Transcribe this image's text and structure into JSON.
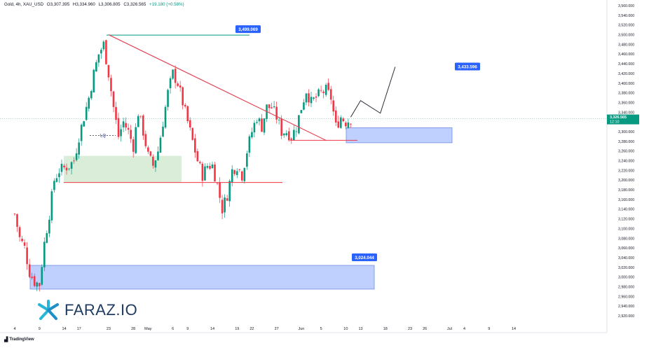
{
  "header": {
    "symbol": "Gold, 4h, XAU_USD",
    "open": "O3,307.395",
    "high": "H3,334.960",
    "low": "L3,306.805",
    "close": "C3,326.565",
    "change": "+19.180 (+0.58%)"
  },
  "watermark": {
    "brand": "FARAZ.IO",
    "logo_icon": "faraz-star-logo"
  },
  "footer": {
    "provider": "TradingView",
    "provider_icon": "tradingview-logo-icon"
  },
  "colors": {
    "up": "#089981",
    "down": "#f23645",
    "trendline": "#e04656",
    "support": "#f23645",
    "resistance_top": "#089981",
    "zone_blue": "#a9c0ff",
    "zone_green": "#cfe8cf",
    "label_bg": "#2962ff"
  },
  "chart_data": {
    "type": "candlestick",
    "instrument": "XAU_USD",
    "timeframe": "4h",
    "ylim": [
      2900,
      3570
    ],
    "y_ticks": [
      2920,
      2940,
      2960,
      2980,
      3000,
      3020,
      3040,
      3060,
      3080,
      3100,
      3120,
      3140,
      3160,
      3180,
      3200,
      3220,
      3240,
      3260,
      3280,
      3300,
      3320,
      3340,
      3360,
      3380,
      3400,
      3420,
      3440,
      3460,
      3480,
      3500,
      3520,
      3540,
      3560
    ],
    "y_tick_labels": [
      "2,920.000",
      "2,940.000",
      "2,960.000",
      "2,980.000",
      "3,000.000",
      "3,020.000",
      "3,040.000",
      "3,060.000",
      "3,080.000",
      "3,100.000",
      "3,120.000",
      "3,140.000",
      "3,160.000",
      "3,180.000",
      "3,200.000",
      "3,220.000",
      "3,240.000",
      "3,260.000",
      "3,280.000",
      "3,300.000",
      "3,320.000",
      "3,340.000",
      "3,360.000",
      "3,380.000",
      "3,400.000",
      "3,420.000",
      "3,440.000",
      "3,460.000",
      "3,480.000",
      "3,500.000",
      "3,520.000",
      "3,540.000",
      "3,560.000"
    ],
    "x_ticks": [
      {
        "label": "4",
        "day": 0
      },
      {
        "label": "9",
        "day": 5
      },
      {
        "label": "14",
        "day": 10
      },
      {
        "label": "17",
        "day": 13
      },
      {
        "label": "23",
        "day": 19
      },
      {
        "label": "28",
        "day": 24
      },
      {
        "label": "May",
        "day": 27
      },
      {
        "label": "6",
        "day": 32
      },
      {
        "label": "9",
        "day": 35
      },
      {
        "label": "14",
        "day": 40
      },
      {
        "label": "19",
        "day": 45
      },
      {
        "label": "22",
        "day": 48
      },
      {
        "label": "27",
        "day": 53
      },
      {
        "label": "Jun",
        "day": 58
      },
      {
        "label": "5",
        "day": 62
      },
      {
        "label": "10",
        "day": 67
      },
      {
        "label": "13",
        "day": 70
      },
      {
        "label": "18",
        "day": 75
      },
      {
        "label": "23",
        "day": 80
      },
      {
        "label": "26",
        "day": 83
      },
      {
        "label": "Jul",
        "day": 88
      },
      {
        "label": "4",
        "day": 91
      },
      {
        "label": "9",
        "day": 96
      },
      {
        "label": "14",
        "day": 101
      }
    ],
    "price_path": [
      {
        "day": 0,
        "price": 3130
      },
      {
        "day": 1,
        "price": 3080
      },
      {
        "day": 2,
        "price": 3060
      },
      {
        "day": 3,
        "price": 3010
      },
      {
        "day": 4,
        "price": 2990
      },
      {
        "day": 5,
        "price": 2985
      },
      {
        "day": 6,
        "price": 3070
      },
      {
        "day": 7,
        "price": 3130
      },
      {
        "day": 8,
        "price": 3200
      },
      {
        "day": 9,
        "price": 3220
      },
      {
        "day": 10,
        "price": 3225
      },
      {
        "day": 11,
        "price": 3230
      },
      {
        "day": 12,
        "price": 3240
      },
      {
        "day": 13,
        "price": 3290
      },
      {
        "day": 14,
        "price": 3330
      },
      {
        "day": 15,
        "price": 3370
      },
      {
        "day": 16,
        "price": 3420
      },
      {
        "day": 17,
        "price": 3460
      },
      {
        "day": 18,
        "price": 3480
      },
      {
        "day": 19,
        "price": 3420
      },
      {
        "day": 20,
        "price": 3350
      },
      {
        "day": 21,
        "price": 3290
      },
      {
        "day": 22,
        "price": 3320
      },
      {
        "day": 23,
        "price": 3300
      },
      {
        "day": 24,
        "price": 3270
      },
      {
        "day": 25,
        "price": 3340
      },
      {
        "day": 26,
        "price": 3300
      },
      {
        "day": 27,
        "price": 3250
      },
      {
        "day": 28,
        "price": 3230
      },
      {
        "day": 29,
        "price": 3260
      },
      {
        "day": 30,
        "price": 3320
      },
      {
        "day": 31,
        "price": 3380
      },
      {
        "day": 32,
        "price": 3420
      },
      {
        "day": 33,
        "price": 3400
      },
      {
        "day": 34,
        "price": 3360
      },
      {
        "day": 35,
        "price": 3320
      },
      {
        "day": 36,
        "price": 3280
      },
      {
        "day": 37,
        "price": 3240
      },
      {
        "day": 38,
        "price": 3210
      },
      {
        "day": 39,
        "price": 3230
      },
      {
        "day": 40,
        "price": 3230
      },
      {
        "day": 41,
        "price": 3190
      },
      {
        "day": 42,
        "price": 3140
      },
      {
        "day": 43,
        "price": 3170
      },
      {
        "day": 44,
        "price": 3220
      },
      {
        "day": 45,
        "price": 3230
      },
      {
        "day": 46,
        "price": 3210
      },
      {
        "day": 47,
        "price": 3260
      },
      {
        "day": 48,
        "price": 3300
      },
      {
        "day": 49,
        "price": 3330
      },
      {
        "day": 50,
        "price": 3310
      },
      {
        "day": 51,
        "price": 3350
      },
      {
        "day": 52,
        "price": 3350
      },
      {
        "day": 53,
        "price": 3330
      },
      {
        "day": 54,
        "price": 3300
      },
      {
        "day": 55,
        "price": 3300
      },
      {
        "day": 56,
        "price": 3290
      },
      {
        "day": 57,
        "price": 3310
      },
      {
        "day": 58,
        "price": 3350
      },
      {
        "day": 59,
        "price": 3385
      },
      {
        "day": 60,
        "price": 3360
      },
      {
        "day": 61,
        "price": 3370
      },
      {
        "day": 62,
        "price": 3380
      },
      {
        "day": 63,
        "price": 3385
      },
      {
        "day": 64,
        "price": 3370
      },
      {
        "day": 65,
        "price": 3310
      },
      {
        "day": 66,
        "price": 3330
      },
      {
        "day": 67,
        "price": 3320
      },
      {
        "day": 68,
        "price": 3326
      }
    ],
    "annotations": {
      "resistance_label": "3,499.069",
      "resistance_level": 3499.069,
      "target_label": "3,433.596",
      "target_level": 3433.596,
      "demand_label": "3,024.044",
      "demand_zone": [
        2975,
        3024
      ],
      "blue_zone": [
        3277,
        3308
      ],
      "green_zone": [
        3195,
        3250
      ],
      "support_level": 3195,
      "lq_label": "LQ",
      "lq_level": 3292,
      "trendline": [
        {
          "day": 19,
          "price": 3500
        },
        {
          "day": 61,
          "price": 3290
        }
      ],
      "projection": [
        {
          "day": 68,
          "price": 3330
        },
        {
          "day": 70,
          "price": 3364
        },
        {
          "day": 74,
          "price": 3338
        },
        {
          "day": 77,
          "price": 3433.596
        }
      ],
      "current_price_label": "3,326.565",
      "current_price": 3326.565,
      "countdown_label": "12:10"
    }
  }
}
